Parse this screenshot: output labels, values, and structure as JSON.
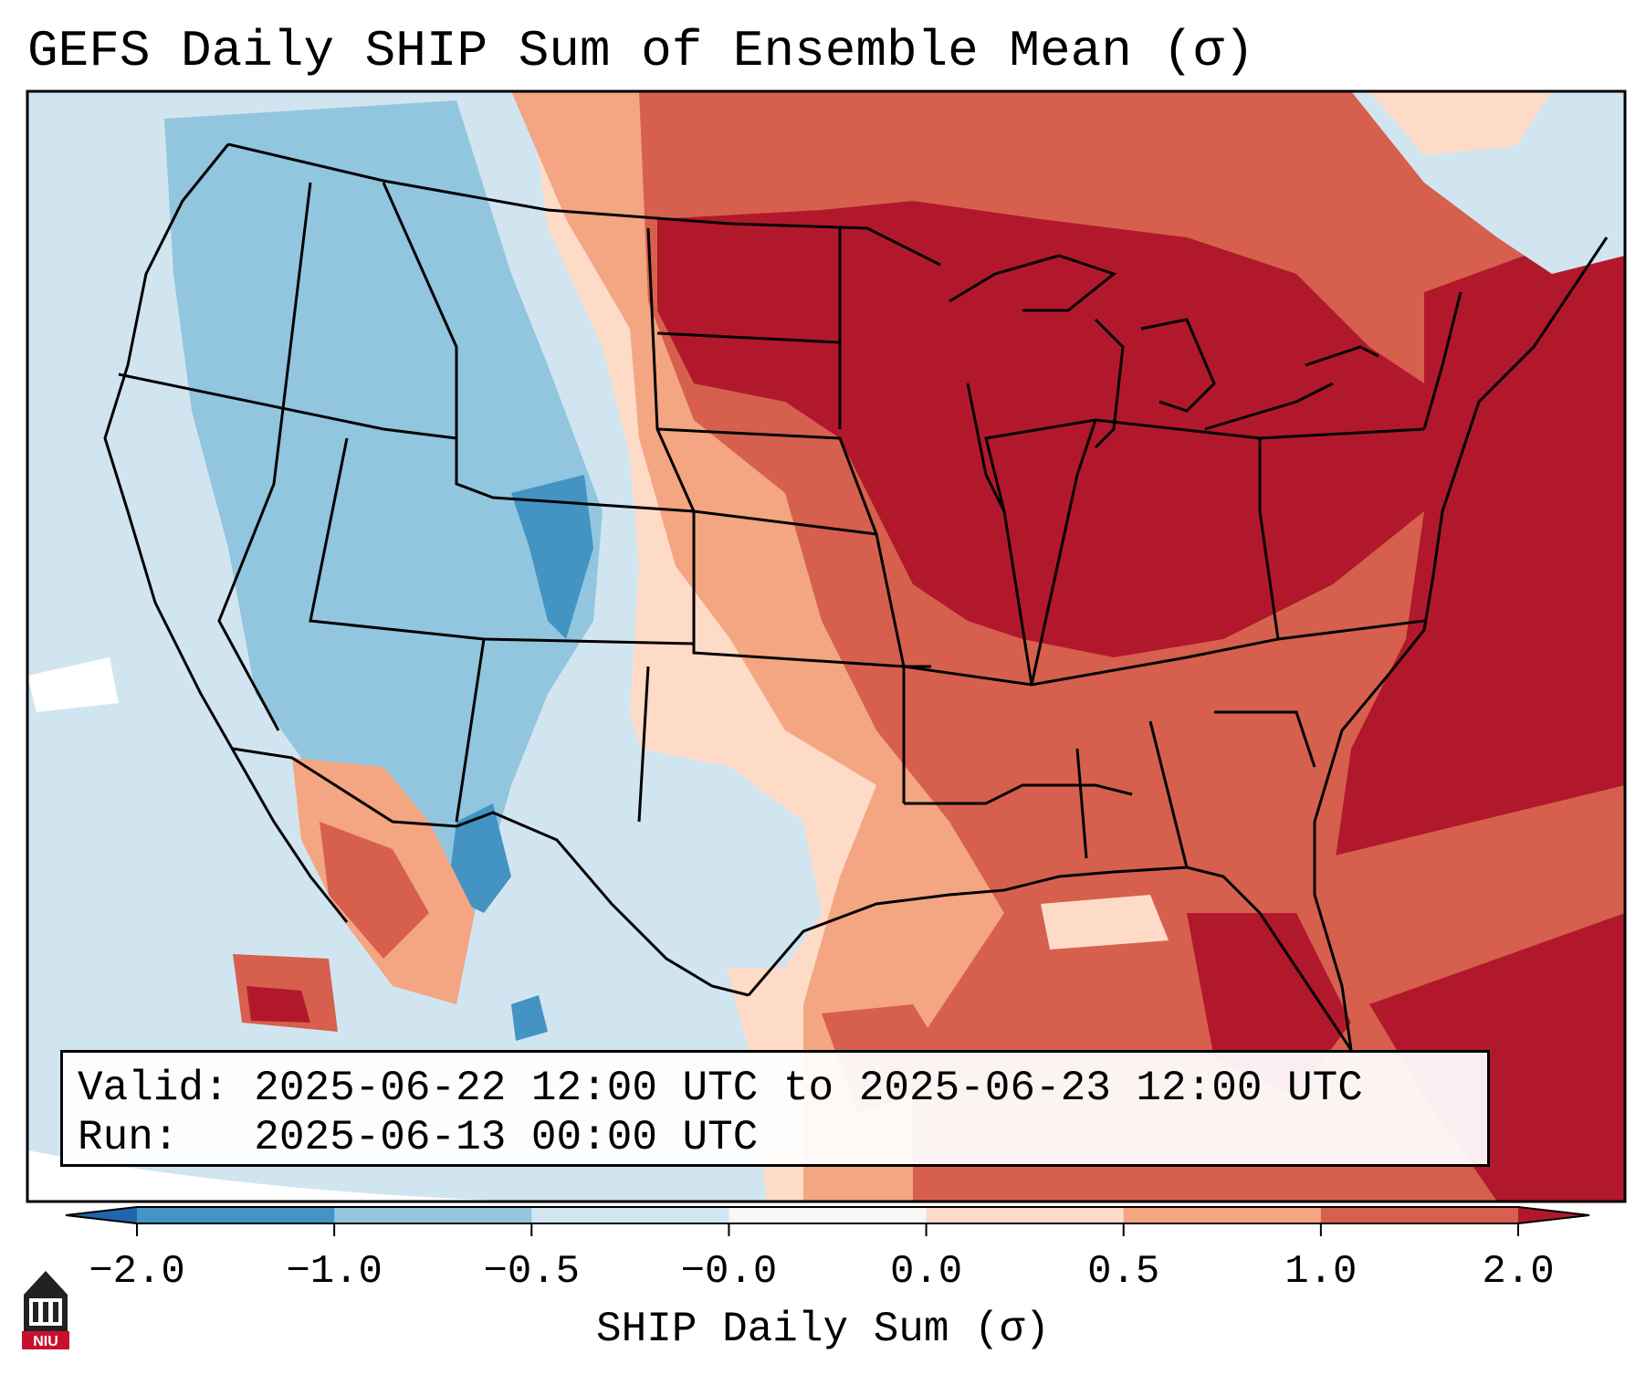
{
  "title": "GEFS Daily SHIP Sum of Ensemble Mean (σ)",
  "info": {
    "valid_label": "Valid:",
    "valid_value": "2025-06-22 12:00 UTC to 2025-06-23 12:00 UTC",
    "run_label": "Run:",
    "run_value": "2025-06-13 00:00 UTC"
  },
  "colorbar": {
    "label": "SHIP Daily Sum (σ)",
    "ticks": [
      "−2.0",
      "−1.0",
      "−0.5",
      "−0.0",
      "0.0",
      "0.5",
      "1.0",
      "2.0"
    ],
    "bin_colors": [
      "#4393c3",
      "#92c5de",
      "#d1e5f0",
      "#f7f7f7",
      "#fddbc7",
      "#f4a582",
      "#d6604d",
      "#b2182b"
    ],
    "extend_low_color": "#2166ac",
    "extend_high_color": "#b2182b"
  },
  "map_colors": {
    "ocean_neutral": "#d1e5f0",
    "dark_blue": "#4393c3",
    "mid_blue": "#92c5de",
    "light_blue": "#d1e5f0",
    "pale_red": "#fddbc7",
    "light_red": "#f4a582",
    "mid_red": "#d6604d",
    "dark_red": "#b2182b"
  },
  "logo": {
    "text": "NIU",
    "color": "#c8102e"
  }
}
